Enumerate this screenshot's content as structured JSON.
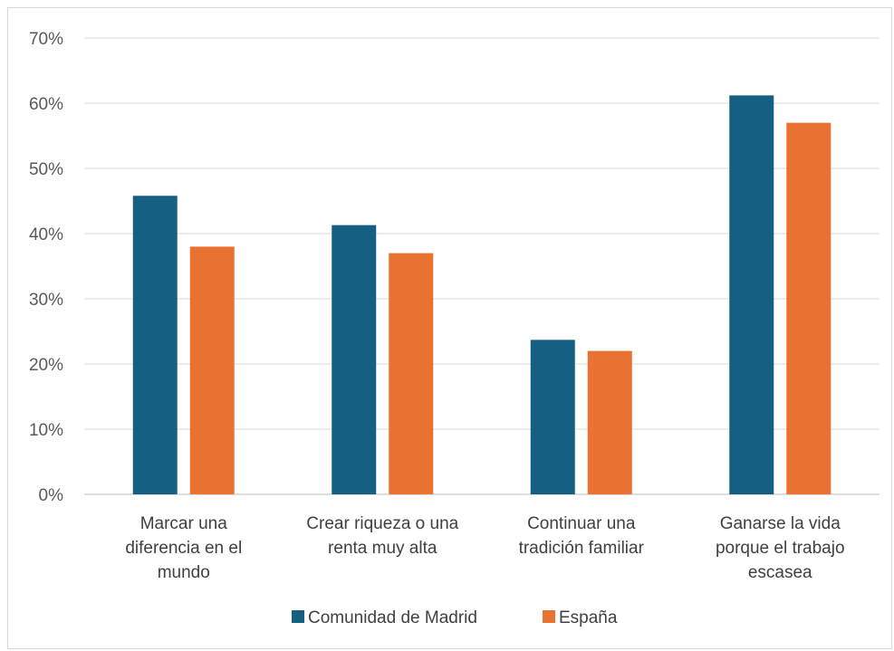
{
  "chart_data": {
    "type": "bar",
    "categories": [
      [
        "Marcar una",
        "diferencia en el",
        "mundo"
      ],
      [
        "Crear riqueza o una",
        "renta muy alta"
      ],
      [
        "Continuar una",
        "tradición familiar"
      ],
      [
        "Ganarse la vida",
        "porque el trabajo",
        "escasea"
      ]
    ],
    "series": [
      {
        "name": "Comunidad de Madrid",
        "color": "#156082",
        "values": [
          45.8,
          41.3,
          23.7,
          61.2
        ]
      },
      {
        "name": "España",
        "color": "#e97132",
        "values": [
          38.0,
          37.0,
          22.0,
          57.0
        ]
      }
    ],
    "yticks": [
      "0%",
      "10%",
      "20%",
      "30%",
      "40%",
      "50%",
      "60%",
      "70%"
    ],
    "ylim": [
      0,
      70
    ],
    "grid": true,
    "legend_position": "bottom"
  }
}
